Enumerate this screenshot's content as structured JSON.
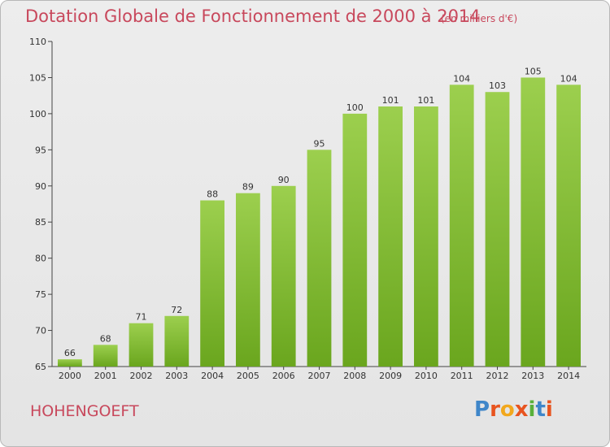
{
  "chart_data": {
    "type": "bar",
    "title": "Dotation Globale de Fonctionnement de 2000 à 2014",
    "unit_note": "(en milliers d'€)",
    "categories": [
      "2000",
      "2001",
      "2002",
      "2003",
      "2004",
      "2005",
      "2006",
      "2007",
      "2008",
      "2009",
      "2010",
      "2011",
      "2012",
      "2013",
      "2014"
    ],
    "values": [
      66,
      68,
      71,
      72,
      88,
      89,
      90,
      95,
      100,
      101,
      101,
      104,
      103,
      105,
      104
    ],
    "data_labels": [
      "66",
      "68",
      "71",
      "72",
      "88",
      "89",
      "90",
      "95",
      "100",
      "101",
      "101",
      "104",
      "103",
      "105",
      "104"
    ],
    "ylim": [
      65,
      110
    ],
    "yticks": [
      65,
      70,
      75,
      80,
      85,
      90,
      95,
      100,
      105,
      110
    ],
    "ytick_labels": [
      "65",
      "70",
      "75",
      "80",
      "85",
      "90",
      "95",
      "100",
      "105",
      "110"
    ],
    "grid": false,
    "bar_color_top": "#9ccf4e",
    "bar_color_bottom": "#6aa61e"
  },
  "footer": {
    "commune": "HOHENGOEFT",
    "logo_text": "Proxiti"
  },
  "colors": {
    "accent": "#c8485c"
  }
}
